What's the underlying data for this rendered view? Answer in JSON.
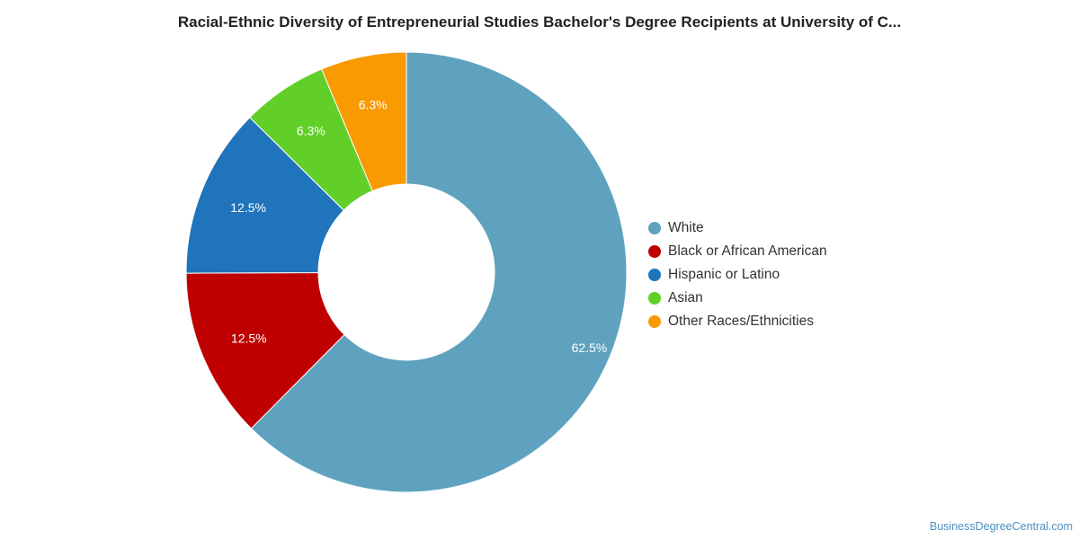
{
  "chart_data": {
    "type": "pie",
    "style": "donut",
    "title": "Racial-Ethnic Diversity of Entrepreneurial Studies Bachelor's Degree Recipients at University of C...",
    "legend_position": "right",
    "slices": [
      {
        "label": "White",
        "value": 62.5,
        "display": "62.5%",
        "color": "#5ea2c0"
      },
      {
        "label": "Black or African American",
        "value": 12.5,
        "display": "12.5%",
        "color": "#be0000"
      },
      {
        "label": "Hispanic or Latino",
        "value": 12.5,
        "display": "12.5%",
        "color": "#1f74bb"
      },
      {
        "label": "Asian",
        "value": 6.3,
        "display": "6.3%",
        "color": "#61cf28"
      },
      {
        "label": "Other Races/Ethnicities",
        "value": 6.3,
        "display": "6.3%",
        "color": "#f89a00"
      }
    ]
  },
  "footer": {
    "source": "BusinessDegreeCentral.com"
  }
}
